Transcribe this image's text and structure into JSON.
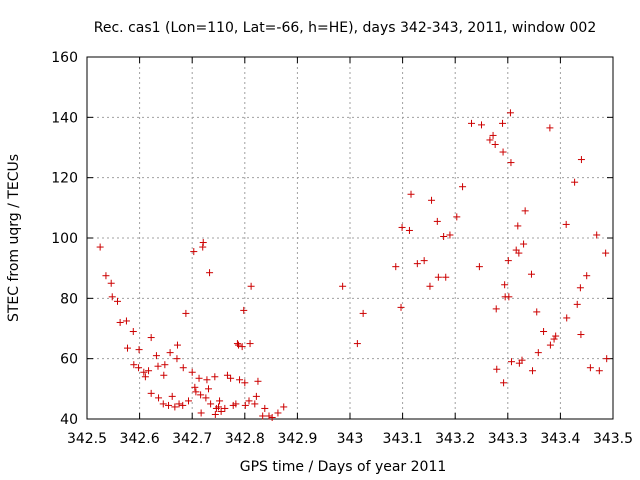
{
  "chart_data": {
    "type": "scatter",
    "title": "Rec. cas1 (Lon=110, Lat=-66, h=HE), days 342-343, 2011, window 002",
    "xlabel": "GPS time / Days of year 2011",
    "ylabel": "STEC from uqrg / TECUs",
    "xlim": [
      342.5,
      343.5
    ],
    "ylim": [
      40,
      160
    ],
    "xticks": [
      "342.5",
      "342.6",
      "342.7",
      "342.8",
      "342.9",
      "343",
      "343.1",
      "343.2",
      "343.3",
      "343.4",
      "343.5"
    ],
    "yticks": [
      "40",
      "60",
      "80",
      "100",
      "120",
      "140",
      "160"
    ],
    "grid": true,
    "marker": "plus",
    "color": "#cc0000",
    "series": [
      {
        "points": [
          [
            342.525,
            97
          ],
          [
            342.536,
            87.5
          ],
          [
            342.546,
            85
          ],
          [
            342.548,
            80.5
          ],
          [
            342.558,
            79
          ],
          [
            342.563,
            72
          ],
          [
            342.575,
            72.5
          ],
          [
            342.577,
            63.5
          ],
          [
            342.588,
            69
          ],
          [
            342.589,
            58
          ],
          [
            342.598,
            57
          ],
          [
            342.599,
            63
          ],
          [
            342.608,
            55.5
          ],
          [
            342.611,
            54
          ],
          [
            342.617,
            56
          ],
          [
            342.622,
            48.5
          ],
          [
            342.622,
            67
          ],
          [
            342.632,
            61
          ],
          [
            342.635,
            57.5
          ],
          [
            342.636,
            47
          ],
          [
            342.645,
            45
          ],
          [
            342.646,
            54.5
          ],
          [
            342.648,
            58
          ],
          [
            342.655,
            44.5
          ],
          [
            342.658,
            62
          ],
          [
            342.662,
            47.5
          ],
          [
            342.667,
            44
          ],
          [
            342.671,
            60
          ],
          [
            342.672,
            64.5
          ],
          [
            342.675,
            45
          ],
          [
            342.682,
            44.5
          ],
          [
            342.683,
            57
          ],
          [
            342.688,
            75
          ],
          [
            342.693,
            46
          ],
          [
            342.7,
            55.5
          ],
          [
            342.703,
            95.5
          ],
          [
            342.705,
            50.5
          ],
          [
            342.707,
            49
          ],
          [
            342.713,
            53.5
          ],
          [
            342.716,
            48
          ],
          [
            342.717,
            42
          ],
          [
            342.72,
            97
          ],
          [
            342.721,
            98.5
          ],
          [
            342.726,
            47
          ],
          [
            342.728,
            53
          ],
          [
            342.731,
            50
          ],
          [
            342.733,
            88.5
          ],
          [
            342.735,
            45
          ],
          [
            342.743,
            54
          ],
          [
            342.744,
            41.5
          ],
          [
            342.746,
            43.5
          ],
          [
            342.75,
            44
          ],
          [
            342.752,
            46
          ],
          [
            342.755,
            42.5
          ],
          [
            342.762,
            43.5
          ],
          [
            342.767,
            54.5
          ],
          [
            342.773,
            53.5
          ],
          [
            342.778,
            44.5
          ],
          [
            342.783,
            45
          ],
          [
            342.786,
            65
          ],
          [
            342.788,
            64.5
          ],
          [
            342.79,
            53
          ],
          [
            342.795,
            64
          ],
          [
            342.798,
            76
          ],
          [
            342.8,
            52
          ],
          [
            342.801,
            44.5
          ],
          [
            342.808,
            46
          ],
          [
            342.81,
            65
          ],
          [
            342.812,
            84
          ],
          [
            342.819,
            45
          ],
          [
            342.822,
            47.5
          ],
          [
            342.825,
            52.5
          ],
          [
            342.834,
            41
          ],
          [
            342.838,
            43.5
          ],
          [
            342.846,
            41
          ],
          [
            342.852,
            40.5
          ],
          [
            342.863,
            42
          ],
          [
            342.874,
            44
          ],
          [
            342.986,
            84
          ],
          [
            343.014,
            65
          ],
          [
            343.025,
            75
          ],
          [
            343.087,
            90.5
          ],
          [
            343.097,
            77
          ],
          [
            343.099,
            103.5
          ],
          [
            343.113,
            102.5
          ],
          [
            343.116,
            114.5
          ],
          [
            343.128,
            91.5
          ],
          [
            343.141,
            92.5
          ],
          [
            343.152,
            84
          ],
          [
            343.155,
            112.5
          ],
          [
            343.166,
            105.5
          ],
          [
            343.168,
            87
          ],
          [
            343.178,
            100.5
          ],
          [
            343.182,
            87
          ],
          [
            343.19,
            101
          ],
          [
            343.203,
            107
          ],
          [
            343.214,
            117
          ],
          [
            343.231,
            138
          ],
          [
            343.246,
            90.5
          ],
          [
            343.25,
            137.5
          ],
          [
            343.266,
            132.5
          ],
          [
            343.272,
            134
          ],
          [
            343.276,
            131
          ],
          [
            343.278,
            76.5
          ],
          [
            343.279,
            56.5
          ],
          [
            343.29,
            138
          ],
          [
            343.291,
            128.5
          ],
          [
            343.292,
            52
          ],
          [
            343.294,
            84.5
          ],
          [
            343.295,
            80.5
          ],
          [
            343.301,
            92.5
          ],
          [
            343.302,
            80.5
          ],
          [
            343.305,
            141.5
          ],
          [
            343.306,
            125
          ],
          [
            343.307,
            59
          ],
          [
            343.316,
            96
          ],
          [
            343.319,
            104
          ],
          [
            343.321,
            95
          ],
          [
            343.322,
            58.5
          ],
          [
            343.327,
            59.5
          ],
          [
            343.33,
            98
          ],
          [
            343.333,
            109
          ],
          [
            343.345,
            88
          ],
          [
            343.347,
            56
          ],
          [
            343.355,
            75.5
          ],
          [
            343.358,
            62
          ],
          [
            343.368,
            69
          ],
          [
            343.38,
            136.5
          ],
          [
            343.381,
            64.5
          ],
          [
            343.388,
            66.5
          ],
          [
            343.391,
            67.5
          ],
          [
            343.411,
            104.5
          ],
          [
            343.412,
            73.5
          ],
          [
            343.427,
            118.5
          ],
          [
            343.432,
            78
          ],
          [
            343.438,
            83.5
          ],
          [
            343.439,
            68
          ],
          [
            343.44,
            126
          ],
          [
            343.45,
            87.5
          ],
          [
            343.457,
            57
          ],
          [
            343.469,
            101
          ],
          [
            343.474,
            56
          ],
          [
            343.486,
            95
          ],
          [
            343.488,
            60
          ]
        ]
      }
    ]
  }
}
